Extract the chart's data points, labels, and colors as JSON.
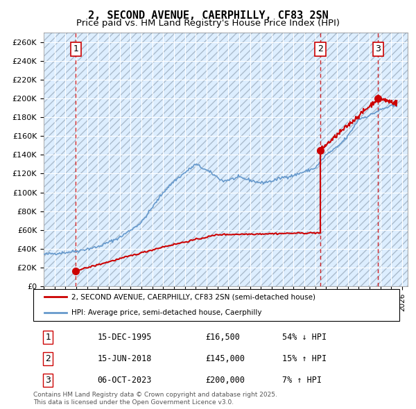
{
  "title_line1": "2, SECOND AVENUE, CAERPHILLY, CF83 2SN",
  "title_line2": "Price paid vs. HM Land Registry's House Price Index (HPI)",
  "ylim": [
    0,
    270000
  ],
  "yticks": [
    0,
    20000,
    40000,
    60000,
    80000,
    100000,
    120000,
    140000,
    160000,
    180000,
    200000,
    220000,
    240000,
    260000
  ],
  "xlim_start": 1993.0,
  "xlim_end": 2026.5,
  "hpi_color": "#6699cc",
  "price_color": "#cc0000",
  "background_plot": "#ddeeff",
  "transactions": [
    {
      "num": 1,
      "date_x": 1995.96,
      "price": 16500,
      "label": "15-DEC-1995",
      "price_str": "£16,500",
      "pct": "54% ↓ HPI"
    },
    {
      "num": 2,
      "date_x": 2018.46,
      "price": 145000,
      "label": "15-JUN-2018",
      "price_str": "£145,000",
      "pct": "15% ↑ HPI"
    },
    {
      "num": 3,
      "date_x": 2023.77,
      "price": 200000,
      "label": "06-OCT-2023",
      "price_str": "£200,000",
      "pct": "7% ↑ HPI"
    }
  ],
  "legend_label_red": "2, SECOND AVENUE, CAERPHILLY, CF83 2SN (semi-detached house)",
  "legend_label_blue": "HPI: Average price, semi-detached house, Caerphilly",
  "footnote": "Contains HM Land Registry data © Crown copyright and database right 2025.\nThis data is licensed under the Open Government Licence v3.0."
}
